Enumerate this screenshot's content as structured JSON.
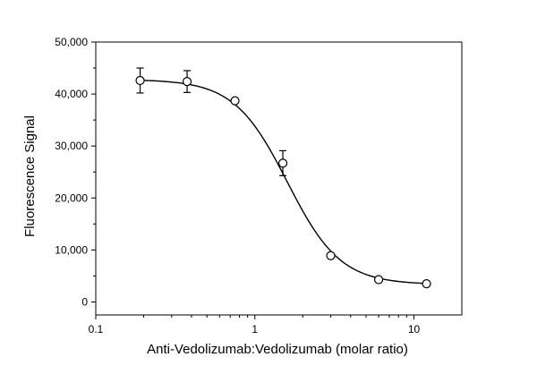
{
  "chart_data": {
    "type": "scatter",
    "xlabel": "Anti-Vedolizumab:Vedolizumab (molar ratio)",
    "ylabel": "Fluorescence Signal",
    "x_scale": "log",
    "xlim": [
      0.1,
      20
    ],
    "ylim": [
      -2500,
      50000
    ],
    "x_ticks": [
      0.1,
      1,
      10
    ],
    "x_tick_labels": [
      "0.1",
      "1",
      "10"
    ],
    "y_ticks": [
      0,
      10000,
      20000,
      30000,
      40000,
      50000
    ],
    "y_tick_labels": [
      "0",
      "10,000",
      "20,000",
      "30,000",
      "40,000",
      "50,000"
    ],
    "grid": false,
    "series": [
      {
        "marker": "open-circle",
        "error_bars": true,
        "points": [
          {
            "x": 0.19,
            "y": 42600,
            "err": 2400
          },
          {
            "x": 0.375,
            "y": 42400,
            "err": 2100
          },
          {
            "x": 0.75,
            "y": 38700,
            "err": 400
          },
          {
            "x": 1.5,
            "y": 26700,
            "err": 2400
          },
          {
            "x": 3,
            "y": 8900,
            "err": 400
          },
          {
            "x": 6,
            "y": 4300,
            "err": 400
          },
          {
            "x": 12,
            "y": 3500,
            "err": 300
          }
        ]
      }
    ],
    "fit_curve": {
      "model": "4PL",
      "bottom": 3350,
      "top": 42800,
      "ec50": 1.6,
      "hill": 2.6,
      "x_range": [
        0.19,
        12
      ]
    },
    "colors": {
      "axis": "#000000",
      "series": "#000000"
    }
  }
}
